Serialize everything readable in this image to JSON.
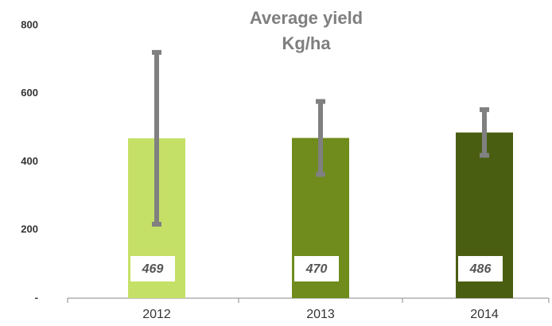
{
  "chart_data": {
    "type": "bar",
    "title": "Average yield",
    "subtitle": "Kg/ha",
    "categories": [
      "2012",
      "2013",
      "2014"
    ],
    "values": [
      469,
      470,
      486
    ],
    "errors": [
      252,
      107,
      67
    ],
    "colors": [
      "#c5e066",
      "#6f8c1c",
      "#4a5e12"
    ],
    "error_color": "#808080",
    "ylim": [
      0,
      800
    ],
    "yticks": [
      {
        "value": 0,
        "label": "-"
      },
      200,
      400,
      600,
      800
    ],
    "grid": false
  }
}
